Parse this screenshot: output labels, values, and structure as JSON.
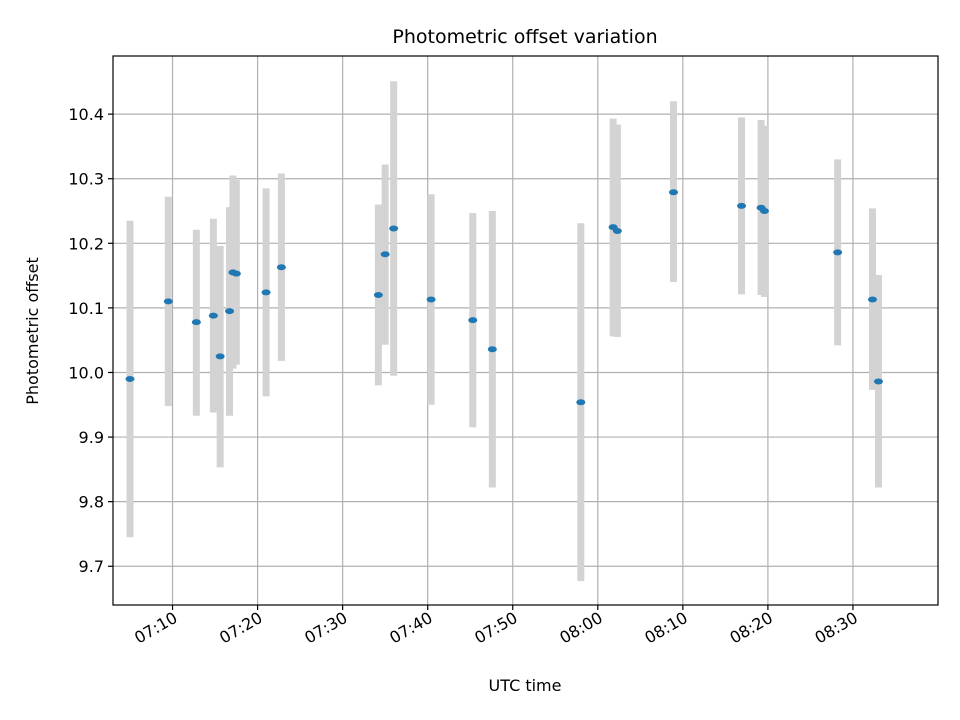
{
  "chart_data": {
    "type": "scatter",
    "title": "Photometric offset variation",
    "xlabel": "UTC time",
    "ylabel": "Photometric offset",
    "xlim": [
      "07:03:00",
      "08:40:00"
    ],
    "ylim": [
      9.64,
      10.49
    ],
    "grid": true,
    "x_ticks": [
      "07:10",
      "07:20",
      "07:30",
      "07:40",
      "07:50",
      "08:00",
      "08:10",
      "08:20",
      "08:30"
    ],
    "y_ticks": [
      "9.7",
      "9.8",
      "9.9",
      "10.0",
      "10.1",
      "10.2",
      "10.3",
      "10.4"
    ],
    "colors": {
      "marker": "#1f77b4",
      "errorbar": "#d3d3d3",
      "grid": "#b0b0b0"
    },
    "series": [
      {
        "points": [
          {
            "x": "07:05:00",
            "y": 9.99,
            "ylo": 9.745,
            "yhi": 10.235
          },
          {
            "x": "07:09:30",
            "y": 10.11,
            "ylo": 9.948,
            "yhi": 10.272
          },
          {
            "x": "07:12:48",
            "y": 10.078,
            "ylo": 9.933,
            "yhi": 10.221
          },
          {
            "x": "07:14:48",
            "y": 10.088,
            "ylo": 9.938,
            "yhi": 10.238
          },
          {
            "x": "07:15:36",
            "y": 10.025,
            "ylo": 9.853,
            "yhi": 10.196
          },
          {
            "x": "07:16:42",
            "y": 10.095,
            "ylo": 9.933,
            "yhi": 10.256
          },
          {
            "x": "07:17:06",
            "y": 10.155,
            "ylo": 10.006,
            "yhi": 10.305
          },
          {
            "x": "07:17:30",
            "y": 10.153,
            "ylo": 10.012,
            "yhi": 10.298
          },
          {
            "x": "07:21:00",
            "y": 10.124,
            "ylo": 9.963,
            "yhi": 10.285
          },
          {
            "x": "07:22:48",
            "y": 10.163,
            "ylo": 10.018,
            "yhi": 10.308
          },
          {
            "x": "07:34:12",
            "y": 10.12,
            "ylo": 9.98,
            "yhi": 10.26
          },
          {
            "x": "07:35:00",
            "y": 10.183,
            "ylo": 10.043,
            "yhi": 10.322
          },
          {
            "x": "07:36:00",
            "y": 10.223,
            "ylo": 9.995,
            "yhi": 10.451
          },
          {
            "x": "07:40:24",
            "y": 10.113,
            "ylo": 9.95,
            "yhi": 10.276
          },
          {
            "x": "07:45:18",
            "y": 10.081,
            "ylo": 9.915,
            "yhi": 10.247
          },
          {
            "x": "07:47:36",
            "y": 10.036,
            "ylo": 9.822,
            "yhi": 10.25
          },
          {
            "x": "07:58:00",
            "y": 9.954,
            "ylo": 9.677,
            "yhi": 10.231
          },
          {
            "x": "08:01:48",
            "y": 10.225,
            "ylo": 10.056,
            "yhi": 10.393
          },
          {
            "x": "08:02:18",
            "y": 10.219,
            "ylo": 10.055,
            "yhi": 10.384
          },
          {
            "x": "08:08:54",
            "y": 10.279,
            "ylo": 10.14,
            "yhi": 10.42
          },
          {
            "x": "08:16:54",
            "y": 10.258,
            "ylo": 10.121,
            "yhi": 10.395
          },
          {
            "x": "08:19:12",
            "y": 10.255,
            "ylo": 10.12,
            "yhi": 10.391
          },
          {
            "x": "08:19:36",
            "y": 10.25,
            "ylo": 10.117,
            "yhi": 10.382
          },
          {
            "x": "08:28:12",
            "y": 10.186,
            "ylo": 10.042,
            "yhi": 10.33
          },
          {
            "x": "08:32:18",
            "y": 10.113,
            "ylo": 9.973,
            "yhi": 10.254
          },
          {
            "x": "08:33:00",
            "y": 9.986,
            "ylo": 9.822,
            "yhi": 10.151
          }
        ]
      }
    ]
  }
}
